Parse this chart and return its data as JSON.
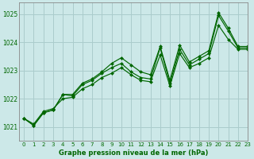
{
  "title": "Graphe pression niveau de la mer (hPa)",
  "bg_color": "#cce8e8",
  "grid_color": "#aacccc",
  "line_color": "#006600",
  "marker_color": "#006600",
  "xlim": [
    -0.5,
    23
  ],
  "ylim": [
    1020.5,
    1025.4
  ],
  "yticks": [
    1021,
    1022,
    1023,
    1024,
    1025
  ],
  "xticks": [
    0,
    1,
    2,
    3,
    4,
    5,
    6,
    7,
    8,
    9,
    10,
    11,
    12,
    13,
    14,
    15,
    16,
    17,
    18,
    19,
    20,
    21,
    22,
    23
  ],
  "series": [
    [
      1021.3,
      1021.05,
      1021.5,
      1021.6,
      1022.15,
      1022.15,
      1022.55,
      1022.7,
      1022.95,
      1023.25,
      1023.45,
      1023.2,
      1022.95,
      1022.85,
      1023.85,
      1022.65,
      1023.9,
      1023.3,
      1023.5,
      1023.7,
      1025.05,
      1024.5,
      1023.85,
      1023.85
    ],
    [
      1021.3,
      1021.05,
      1021.5,
      1021.6,
      1022.15,
      1022.1,
      1022.5,
      1022.65,
      1022.9,
      1023.1,
      1023.25,
      1022.95,
      1022.75,
      1022.7,
      1023.8,
      1022.55,
      1023.75,
      1023.2,
      1023.4,
      1023.6,
      1024.95,
      1024.4,
      1023.8,
      1023.8
    ],
    [
      1021.3,
      1021.1,
      1021.55,
      1021.65,
      1022.0,
      1022.05,
      1022.35,
      1022.5,
      1022.75,
      1022.9,
      1023.1,
      1022.85,
      1022.65,
      1022.6,
      1023.55,
      1022.45,
      1023.6,
      1023.1,
      1023.25,
      1023.45,
      1024.6,
      1024.1,
      1023.75,
      1023.75
    ]
  ]
}
